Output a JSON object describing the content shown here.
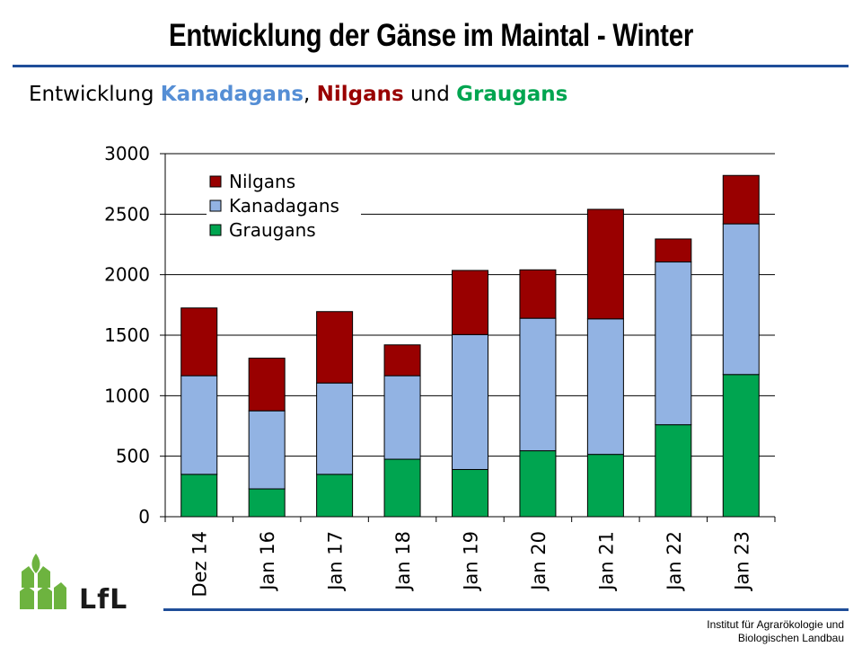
{
  "header": {
    "title": "Entwicklung der Gänse im Maintal - Winter",
    "subtitle_prefix": "Entwicklung ",
    "subtitle_sep1": ", ",
    "subtitle_sep2": " und ",
    "subtitle_species": [
      "Kanadagans",
      "Nilgans",
      "Graugans"
    ]
  },
  "footer": {
    "institute_line1": "Institut für Agrarökologie und",
    "institute_line2": "Biologischen Landbau",
    "logo_text": "LfL"
  },
  "colors": {
    "kanadagans": "#558ed5",
    "nilgans": "#990000",
    "graugans": "#00a550",
    "rule": "#1f4e99"
  },
  "chart_data": {
    "type": "bar",
    "stacked": true,
    "categories": [
      "Dez 14",
      "Jan 16",
      "Jan 17",
      "Jan 18",
      "Jan 19",
      "Jan 20",
      "Jan 21",
      "Jan 22",
      "Jan 23"
    ],
    "series": [
      {
        "name": "Graugans",
        "color": "#00a550",
        "values": [
          350,
          230,
          350,
          475,
          390,
          545,
          515,
          760,
          1175
        ]
      },
      {
        "name": "Kanadagans",
        "color": "#92b3e3",
        "values": [
          815,
          645,
          755,
          690,
          1115,
          1095,
          1120,
          1345,
          1245
        ]
      },
      {
        "name": "Nilgans",
        "color": "#990000",
        "values": [
          560,
          435,
          590,
          255,
          530,
          400,
          905,
          190,
          400
        ]
      }
    ],
    "legend_order": [
      "Nilgans",
      "Kanadagans",
      "Graugans"
    ],
    "ylim": [
      0,
      3000
    ],
    "yticks": [
      0,
      500,
      1000,
      1500,
      2000,
      2500,
      3000
    ],
    "grid": true,
    "legend_position": "top-left"
  }
}
